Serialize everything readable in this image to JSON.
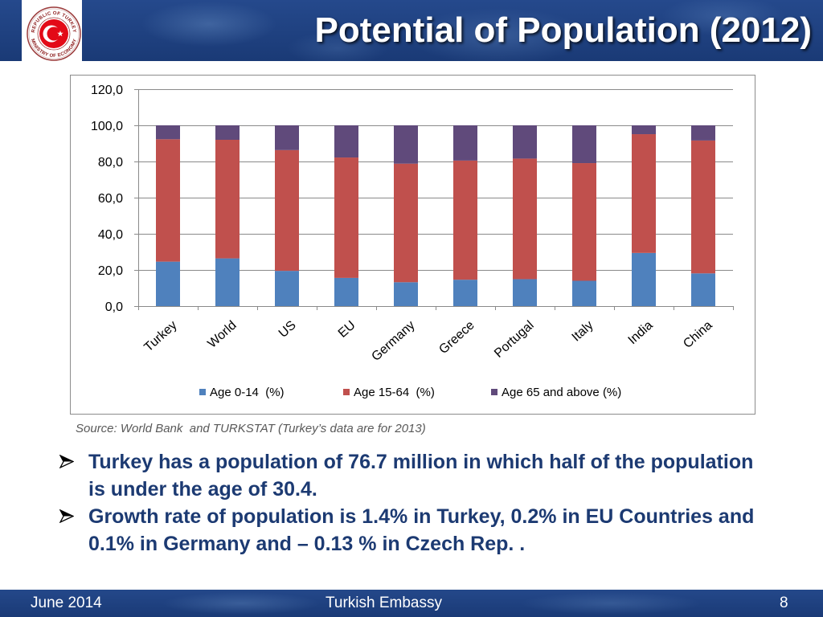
{
  "header": {
    "title": "Potential of Population (2012)"
  },
  "logo": {
    "top_text": "REPUBLIC OF TURKEY",
    "bottom_text": "MINISTRY OF ECONOMY",
    "emblem": "crescent-star-icon"
  },
  "colors": {
    "header_blue": "#1f427f",
    "bullet_text": "#1c3a72",
    "seal_red": "#e30a17"
  },
  "chart_data": {
    "type": "bar",
    "stacked": true,
    "categories": [
      "Turkey",
      "World",
      "US",
      "EU",
      "Germany",
      "Greece",
      "Portugal",
      "Italy",
      "India",
      "China"
    ],
    "series": [
      {
        "name": "Age 0-14  (%)",
        "color": "#4f81bd",
        "values": [
          24.6,
          26.4,
          19.5,
          15.6,
          13.2,
          14.6,
          14.9,
          14.0,
          29.4,
          18.1
        ]
      },
      {
        "name": "Age 15-64  (%)",
        "color": "#c0504d",
        "values": [
          67.7,
          65.6,
          66.8,
          66.6,
          65.6,
          65.9,
          66.7,
          65.1,
          65.7,
          73.5
        ]
      },
      {
        "name": "Age 65 and above (%)",
        "color": "#604a7b",
        "values": [
          7.7,
          8.0,
          13.7,
          17.8,
          21.2,
          19.5,
          18.4,
          20.9,
          4.9,
          8.4
        ]
      }
    ],
    "ylim": [
      0,
      120
    ],
    "yticks": [
      0,
      20,
      40,
      60,
      80,
      100,
      120
    ],
    "ytick_labels": [
      "0,0",
      "20,0",
      "40,0",
      "60,0",
      "80,0",
      "100,0",
      "120,0"
    ],
    "grid": true,
    "legend_position": "bottom"
  },
  "source": "Source: World Bank  and TURKSTAT (Turkey’s data are for 2013)",
  "bullet_icon": "arrow-bullet-icon",
  "bullets": [
    "Turkey has a population of 76.7 million in which half of the population is under the age of 30.4.",
    "Growth rate of population is 1.4% in Turkey, 0.2% in EU Countries and 0.1% in Germany and – 0.13 % in Czech Rep. ."
  ],
  "footer": {
    "date": "June 2014",
    "organization": "Turkish Embassy",
    "page_number": "8"
  }
}
